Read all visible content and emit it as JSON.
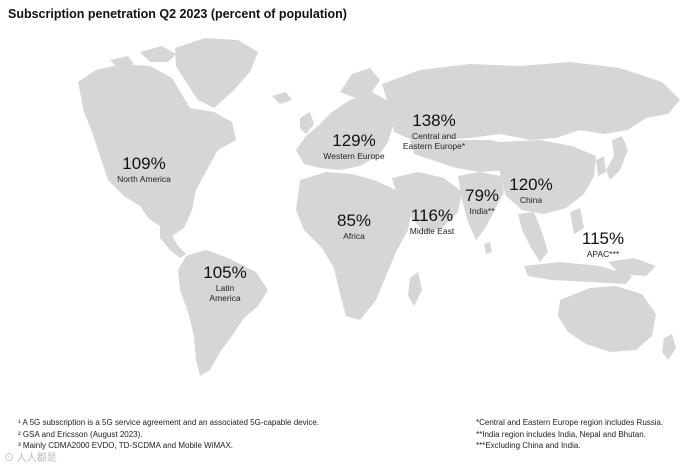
{
  "title": "Subscription penetration Q2 2023 (percent of population)",
  "map": {
    "land_color": "#d6d6d6"
  },
  "regions": {
    "north_america": {
      "value": "109%",
      "label": "North America"
    },
    "latin_america": {
      "value": "105%",
      "label_line1": "Latin",
      "label_line2": "America"
    },
    "western_europe": {
      "value": "129%",
      "label": "Western Europe"
    },
    "central_eastern_europe": {
      "value": "138%",
      "label_line1": "Central and",
      "label_line2": "Eastern Europe*"
    },
    "africa": {
      "value": "85%",
      "label": "Africa"
    },
    "middle_east": {
      "value": "116%",
      "label": "Middle East"
    },
    "india": {
      "value": "79%",
      "label": "India**"
    },
    "china": {
      "value": "120%",
      "label": "China"
    },
    "apac": {
      "value": "115%",
      "label": "APAC***"
    }
  },
  "footnotes_left": [
    "¹ A 5G subscription is a 5G service agreement and an associated 5G-capable device.",
    "² GSA and Ericsson (August 2023).",
    "³ Mainly CDMA2000 EVDO, TD-SCDMA and Mobile WiMAX."
  ],
  "footnotes_right": [
    "*Central and Eastern Europe region includes Russia.",
    "**India region includes India, Nepal and Bhutan.",
    "***Excluding China and India."
  ],
  "watermark": "人人都是"
}
